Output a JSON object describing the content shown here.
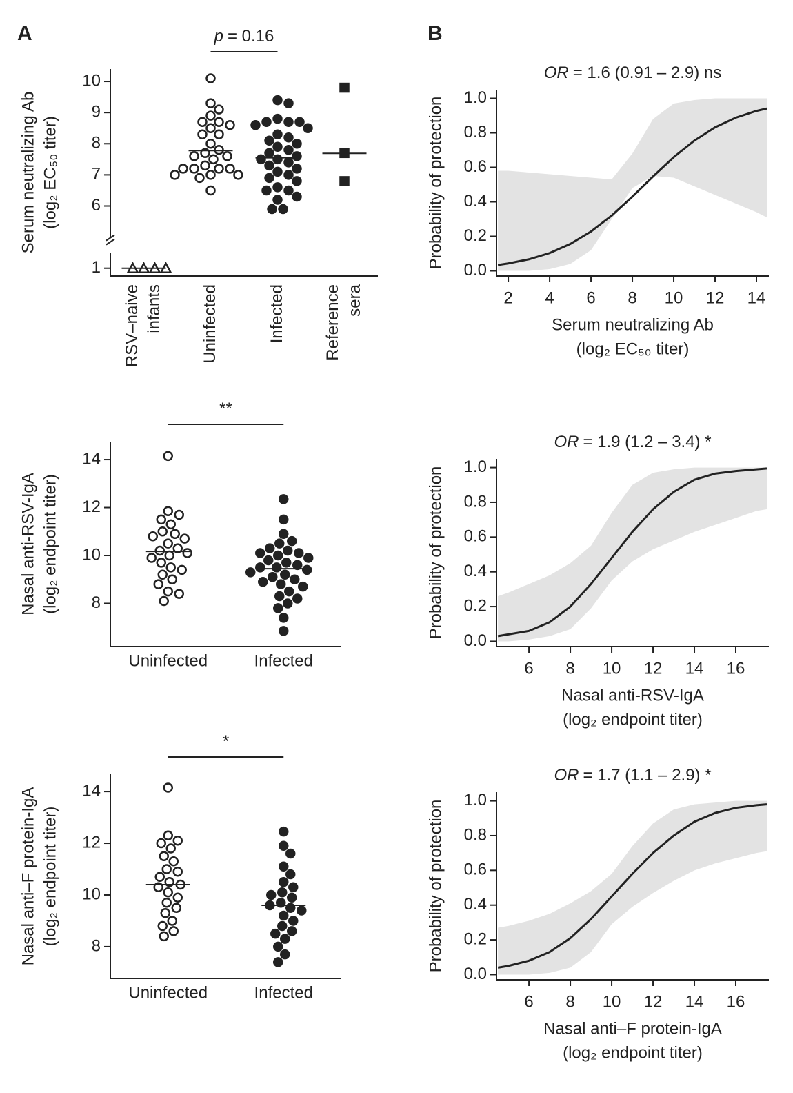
{
  "panel_labels": [
    "A",
    "B"
  ],
  "chart_data": [
    {
      "type": "strip",
      "categories": [
        [
          "RSV–naive",
          "infants"
        ],
        [
          "Uninfected"
        ],
        [
          "Infected"
        ],
        [
          "Reference",
          "sera"
        ]
      ],
      "values": [
        [
          1,
          1,
          1,
          1
        ],
        [
          10.1,
          9.3,
          9.1,
          8.9,
          8.7,
          8.7,
          8.6,
          8.5,
          8.3,
          8.3,
          8.0,
          7.8,
          7.7,
          7.6,
          7.6,
          7.5,
          7.3,
          7.2,
          7.2,
          7.2,
          7.2,
          7.0,
          7.0,
          7.0,
          6.9,
          6.5
        ],
        [
          9.4,
          9.3,
          8.8,
          8.7,
          8.7,
          8.7,
          8.6,
          8.5,
          8.3,
          8.2,
          8.1,
          8.0,
          7.9,
          7.8,
          7.7,
          7.6,
          7.5,
          7.5,
          7.4,
          7.3,
          7.2,
          7.1,
          7.0,
          6.9,
          6.8,
          6.6,
          6.5,
          6.5,
          6.3,
          6.2,
          5.9,
          5.9
        ],
        [
          9.8,
          7.7,
          6.8
        ]
      ],
      "markers": [
        "triangle",
        "circle",
        "circle",
        "square"
      ],
      "filled": [
        false,
        false,
        true,
        true
      ],
      "medians": [
        1,
        7.78,
        7.55,
        7.69
      ],
      "ylabel": [
        "Serum neutralizing Ab",
        "(log₂ EC₅₀ titer)"
      ],
      "ylim": [
        0.75,
        10.4
      ],
      "yticks": [
        1,
        6,
        7,
        8,
        9,
        10
      ],
      "y_break": [
        1.5,
        5
      ],
      "xtick_rotation": 90,
      "annotation": {
        "emphasis": "p",
        "text": "= 0.16",
        "compare": [
          "Uninfected",
          "Infected"
        ]
      }
    },
    {
      "type": "logistic",
      "title_emphasis": "OR",
      "title": "= 1.6 (0.91 – 2.9) ns",
      "xlabel": [
        "Serum neutralizing Ab",
        "(log₂ EC₅₀ titer)"
      ],
      "ylabel": "Probability of protection",
      "x": [
        1.5,
        2,
        3,
        4,
        5,
        6,
        7,
        8,
        9,
        10,
        11,
        12,
        13,
        14,
        14.5
      ],
      "y": [
        0.034,
        0.043,
        0.067,
        0.103,
        0.156,
        0.228,
        0.32,
        0.43,
        0.547,
        0.659,
        0.755,
        0.832,
        0.888,
        0.927,
        0.941
      ],
      "upper": [
        0.58,
        0.58,
        0.57,
        0.56,
        0.55,
        0.54,
        0.53,
        0.68,
        0.88,
        0.97,
        0.99,
        1.0,
        1.0,
        1.0,
        1.0
      ],
      "lower": [
        0,
        0,
        0,
        0.01,
        0.04,
        0.12,
        0.3,
        0.48,
        0.55,
        0.54,
        0.49,
        0.44,
        0.39,
        0.34,
        0.31
      ],
      "xlim": [
        1.43,
        14.6
      ],
      "xticks": [
        2,
        4,
        6,
        8,
        10,
        12,
        14
      ],
      "ylim": [
        -0.03,
        1.05
      ],
      "yticks": [
        {
          "value": 0,
          "label": "0.0"
        },
        0.2,
        0.4,
        0.6,
        0.8,
        {
          "value": 1,
          "label": "1.0"
        }
      ],
      "color": "#222222",
      "band_color": "#e3e3e3"
    },
    {
      "type": "strip",
      "categories": [
        [
          "Uninfected"
        ],
        [
          "Infected"
        ]
      ],
      "values": [
        [
          14.15,
          11.85,
          11.7,
          11.5,
          11.3,
          11.0,
          10.9,
          10.8,
          10.7,
          10.5,
          10.3,
          10.2,
          10.1,
          10.0,
          9.9,
          9.7,
          9.5,
          9.4,
          9.2,
          9.0,
          8.8,
          8.5,
          8.4,
          8.1
        ],
        [
          12.35,
          11.5,
          10.9,
          10.6,
          10.5,
          10.3,
          10.2,
          10.1,
          10.1,
          10.0,
          9.9,
          9.8,
          9.7,
          9.6,
          9.5,
          9.5,
          9.4,
          9.3,
          9.2,
          9.1,
          9.0,
          8.9,
          8.8,
          8.7,
          8.5,
          8.3,
          8.2,
          8.0,
          7.8,
          7.4,
          6.85
        ]
      ],
      "markers": [
        "circle",
        "circle"
      ],
      "filled": [
        false,
        true
      ],
      "medians": [
        10.17,
        9.45
      ],
      "ylabel": [
        "Nasal anti-RSV-IgA",
        "(log₂ endpoint titer)"
      ],
      "ylim": [
        6.2,
        14.75
      ],
      "yticks": [
        8,
        10,
        12,
        14
      ],
      "annotation": {
        "text": "**",
        "compare": [
          "Uninfected",
          "Infected"
        ]
      }
    },
    {
      "type": "logistic",
      "title_emphasis": "OR",
      "title": "= 1.9 (1.2 – 3.4) *",
      "xlabel": [
        "Nasal anti-RSV-IgA",
        "(log₂ endpoint titer)"
      ],
      "ylabel": "Probability of protection",
      "x": [
        4.5,
        5,
        6,
        7,
        8,
        9,
        10,
        11,
        12,
        13,
        14,
        15,
        16,
        17,
        17.5
      ],
      "y": [
        0.03,
        0.04,
        0.06,
        0.11,
        0.2,
        0.33,
        0.48,
        0.63,
        0.76,
        0.86,
        0.93,
        0.965,
        0.98,
        0.99,
        0.995
      ],
      "upper": [
        0.26,
        0.28,
        0.33,
        0.38,
        0.45,
        0.55,
        0.74,
        0.9,
        0.97,
        0.99,
        1.0,
        1.0,
        1.0,
        1.0,
        1.0
      ],
      "lower": [
        0,
        0,
        0.01,
        0.03,
        0.07,
        0.19,
        0.35,
        0.46,
        0.53,
        0.58,
        0.63,
        0.67,
        0.71,
        0.75,
        0.76
      ],
      "xlim": [
        4.43,
        17.6
      ],
      "xticks": [
        6,
        8,
        10,
        12,
        14,
        16
      ],
      "ylim": [
        -0.03,
        1.05
      ],
      "yticks": [
        {
          "value": 0,
          "label": "0.0"
        },
        0.2,
        0.4,
        0.6,
        0.8,
        {
          "value": 1,
          "label": "1.0"
        }
      ],
      "color": "#222222",
      "band_color": "#e3e3e3"
    },
    {
      "type": "strip",
      "categories": [
        [
          "Uninfected"
        ],
        [
          "Infected"
        ]
      ],
      "values": [
        [
          14.15,
          12.3,
          12.1,
          12.0,
          11.8,
          11.5,
          11.3,
          11.0,
          10.9,
          10.7,
          10.5,
          10.4,
          10.3,
          10.1,
          9.9,
          9.7,
          9.5,
          9.3,
          9.0,
          8.8,
          8.6,
          8.4
        ],
        [
          12.45,
          11.9,
          11.6,
          11.1,
          10.8,
          10.5,
          10.3,
          10.1,
          10.0,
          9.9,
          9.7,
          9.6,
          9.5,
          9.4,
          9.2,
          9.0,
          8.8,
          8.6,
          8.5,
          8.3,
          8.0,
          7.7,
          7.4
        ]
      ],
      "markers": [
        "circle",
        "circle"
      ],
      "filled": [
        false,
        true
      ],
      "medians": [
        10.4,
        9.6
      ],
      "ylabel": [
        "Nasal anti–F protein-IgA",
        "(log₂ endpoint titer)"
      ],
      "ylim": [
        6.77,
        14.67
      ],
      "yticks": [
        8,
        10,
        12,
        14
      ],
      "annotation": {
        "text": "*",
        "compare": [
          "Uninfected",
          "Infected"
        ]
      }
    },
    {
      "type": "logistic",
      "title_emphasis": "OR",
      "title": "= 1.7 (1.1 – 2.9) *",
      "xlabel": [
        "Nasal anti–F protein-IgA",
        "(log₂ endpoint titer)"
      ],
      "ylabel": "Probability of protection",
      "x": [
        4.5,
        5,
        6,
        7,
        8,
        9,
        10,
        11,
        12,
        13,
        14,
        15,
        16,
        17,
        17.5
      ],
      "y": [
        0.04,
        0.05,
        0.08,
        0.13,
        0.21,
        0.32,
        0.45,
        0.58,
        0.7,
        0.8,
        0.88,
        0.93,
        0.96,
        0.975,
        0.98
      ],
      "upper": [
        0.27,
        0.28,
        0.31,
        0.35,
        0.41,
        0.48,
        0.58,
        0.74,
        0.87,
        0.95,
        0.98,
        0.99,
        1.0,
        1.0,
        1.0
      ],
      "lower": [
        0,
        0,
        0,
        0.01,
        0.04,
        0.13,
        0.29,
        0.39,
        0.47,
        0.54,
        0.6,
        0.64,
        0.67,
        0.7,
        0.71
      ],
      "xlim": [
        4.43,
        17.6
      ],
      "xticks": [
        6,
        8,
        10,
        12,
        14,
        16
      ],
      "ylim": [
        -0.03,
        1.05
      ],
      "yticks": [
        {
          "value": 0,
          "label": "0.0"
        },
        0.2,
        0.4,
        0.6,
        0.8,
        {
          "value": 1,
          "label": "1.0"
        }
      ],
      "color": "#222222",
      "band_color": "#e3e3e3"
    }
  ]
}
